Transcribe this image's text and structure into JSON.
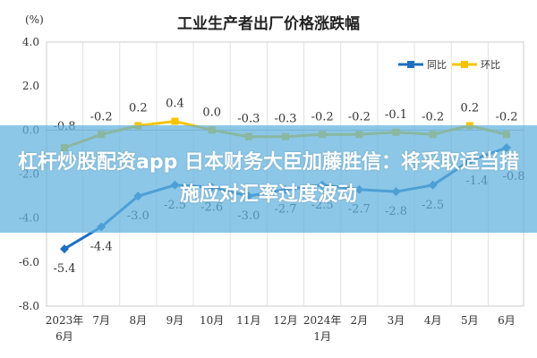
{
  "chart_data": {
    "type": "line",
    "title": "工业生产者出厂价格涨跌幅",
    "ylabel": "(%)",
    "ylim": [
      -8,
      4
    ],
    "yticks": [
      "4.0",
      "2.0",
      "0.0",
      "-2.0",
      "-4.0",
      "-6.0",
      "-8.0"
    ],
    "categories": [
      [
        "2023年",
        "6月"
      ],
      [
        "7月"
      ],
      [
        "8月"
      ],
      [
        "9月"
      ],
      [
        "10月"
      ],
      [
        "11月"
      ],
      [
        "12月"
      ],
      [
        "2024年",
        "1月"
      ],
      [
        "2月"
      ],
      [
        "3月"
      ],
      [
        "4月"
      ],
      [
        "5月"
      ],
      [
        "6月"
      ]
    ],
    "grid": "vertical",
    "legend_placement": "top-right",
    "series": [
      {
        "name": "同比",
        "color": "#1f6fc0",
        "marker": "diamond",
        "values": [
          -5.4,
          -4.4,
          -3.0,
          -2.5,
          -2.6,
          -3.0,
          -2.7,
          -2.5,
          -2.7,
          -2.8,
          -2.5,
          -1.4,
          -0.8
        ],
        "labels": [
          "-5.4",
          "-4.4",
          "-3.0",
          "-2.5",
          "-2.6",
          "-3.0",
          "-2.7",
          "-2.5",
          "-2.7",
          "-2.8",
          "-2.5",
          "-1.4",
          "-0.8"
        ]
      },
      {
        "name": "环比",
        "color": "#f5c400",
        "marker": "square",
        "values": [
          -0.8,
          -0.2,
          0.2,
          0.4,
          0.0,
          -0.3,
          -0.3,
          -0.2,
          -0.2,
          -0.1,
          -0.2,
          0.2,
          -0.2
        ],
        "labels": [
          "-0.8",
          "-0.2",
          "0.2",
          "0.4",
          "0.0",
          "-0.3",
          "-0.3",
          "-0.2",
          "-0.2",
          "-0.1",
          "-0.2",
          "0.2",
          "-0.2"
        ]
      }
    ]
  },
  "banner": {
    "text": "杠杆炒股配资app 日本财务大臣加藤胜信：将采取适当措施应对汇率过度波动"
  }
}
